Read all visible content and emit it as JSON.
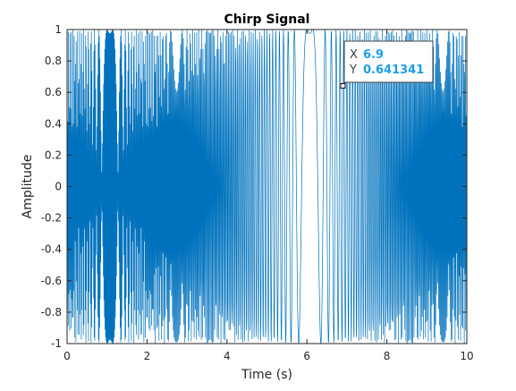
{
  "chart_data": {
    "type": "line",
    "title": "Chirp Signal",
    "xlabel": "Time (s)",
    "ylabel": "Amplitude",
    "xlim": [
      0,
      10
    ],
    "ylim": [
      -1,
      1
    ],
    "xticks": [
      "0",
      "2",
      "4",
      "6",
      "8",
      "10"
    ],
    "yticks": [
      "1",
      "0.8",
      "0.6",
      "0.4",
      "0.2",
      "0",
      "-0.2",
      "-0.4",
      "-0.6",
      "-0.8",
      "-1"
    ],
    "grid": false,
    "series": [
      {
        "color": "#0072bd",
        "signal": "chirp",
        "amplitude_range": [
          -1,
          1
        ],
        "t_range": [
          0,
          10
        ]
      }
    ],
    "datatip": {
      "x_label": "X",
      "y_label": "Y",
      "x": "6.9",
      "y": "0.641341"
    }
  }
}
